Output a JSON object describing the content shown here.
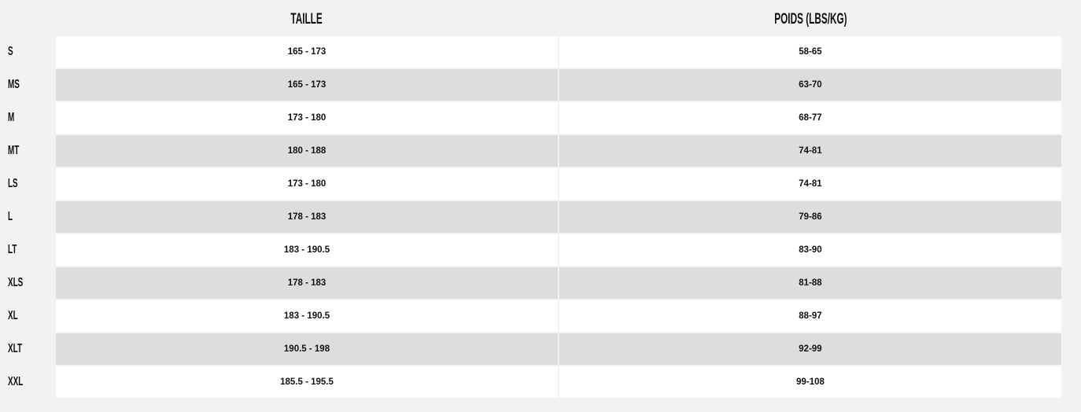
{
  "headers": {
    "size_col": "TAILLE",
    "weight_col": "POIDS (LBS/KG)"
  },
  "rows": [
    {
      "label": "S",
      "taille": "165 - 173",
      "poids": "58-65"
    },
    {
      "label": "MS",
      "taille": "165 - 173",
      "poids": "63-70"
    },
    {
      "label": "M",
      "taille": "173 - 180",
      "poids": "68-77"
    },
    {
      "label": "MT",
      "taille": "180 - 188",
      "poids": "74-81"
    },
    {
      "label": "LS",
      "taille": "173 - 180",
      "poids": "74-81"
    },
    {
      "label": "L",
      "taille": "178 - 183",
      "poids": "79-86"
    },
    {
      "label": "LT",
      "taille": "183 - 190.5",
      "poids": "83-90"
    },
    {
      "label": "XLS",
      "taille": "178 - 183",
      "poids": "81-88"
    },
    {
      "label": "XL",
      "taille": "183 - 190.5",
      "poids": "88-97"
    },
    {
      "label": "XLT",
      "taille": "190.5 - 198",
      "poids": "92-99"
    },
    {
      "label": "XXL",
      "taille": "185.5 - 195.5",
      "poids": "99-108"
    }
  ],
  "colors": {
    "background": "#f2f2f2",
    "row_odd": "#ffffff",
    "row_even": "#dddddd",
    "text": "#111111"
  }
}
